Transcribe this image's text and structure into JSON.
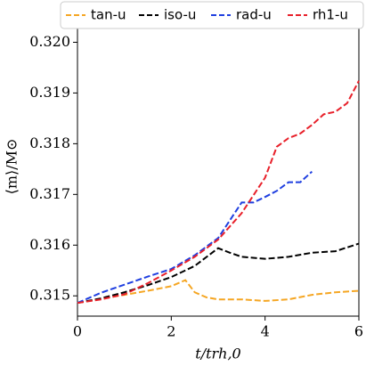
{
  "chart_data": {
    "type": "line",
    "xlabel": "t/trh,0",
    "ylabel": "⟨m⟩/M⊙",
    "xlim": [
      0,
      6
    ],
    "ylim": [
      0.3146,
      0.3205
    ],
    "xticks": [
      0,
      2,
      4,
      6
    ],
    "yticks": [
      0.315,
      0.316,
      0.317,
      0.318,
      0.319,
      {
        "value": 0.32,
        "label": "0.320"
      }
    ],
    "series": [
      {
        "name": "tan-u",
        "color": "#f5a623",
        "x": [
          0,
          0.5,
          1,
          1.5,
          2,
          2.3,
          2.5,
          2.75,
          3,
          3.5,
          4,
          4.5,
          5,
          5.5,
          6
        ],
        "values": [
          0.31486,
          0.31494,
          0.31502,
          0.3151,
          0.31519,
          0.31531,
          0.31507,
          0.31497,
          0.31493,
          0.31493,
          0.3149,
          0.31493,
          0.31502,
          0.31507,
          0.3151
        ]
      },
      {
        "name": "iso-u",
        "color": "#000000",
        "x": [
          0,
          0.5,
          1,
          1.5,
          2,
          2.5,
          3,
          3.25,
          3.5,
          4,
          4.5,
          5,
          5.5,
          6
        ],
        "values": [
          0.31486,
          0.31495,
          0.31507,
          0.31521,
          0.31537,
          0.31559,
          0.31594,
          0.31585,
          0.31577,
          0.31573,
          0.31577,
          0.31585,
          0.31588,
          0.31603
        ]
      },
      {
        "name": "rad-u",
        "color": "#1f3fe0",
        "x": [
          0,
          0.5,
          1,
          1.5,
          2,
          2.5,
          3,
          3.5,
          3.75,
          4,
          4.25,
          4.5,
          4.75,
          5
        ],
        "values": [
          0.31486,
          0.31506,
          0.31522,
          0.31538,
          0.31553,
          0.3158,
          0.31614,
          0.31684,
          0.31684,
          0.31695,
          0.31707,
          0.31724,
          0.31724,
          0.31745
        ]
      },
      {
        "name": "rh1-u",
        "color": "#e8202a",
        "x": [
          0,
          0.5,
          1,
          1.5,
          2,
          2.5,
          3,
          3.5,
          4,
          4.25,
          4.5,
          4.75,
          5,
          5.25,
          5.5,
          5.75,
          6
        ],
        "values": [
          0.31486,
          0.31493,
          0.31503,
          0.31525,
          0.3155,
          0.31577,
          0.31611,
          0.31663,
          0.31733,
          0.31794,
          0.31811,
          0.3182,
          0.31837,
          0.31858,
          0.31863,
          0.3188,
          0.31924
        ]
      }
    ]
  }
}
